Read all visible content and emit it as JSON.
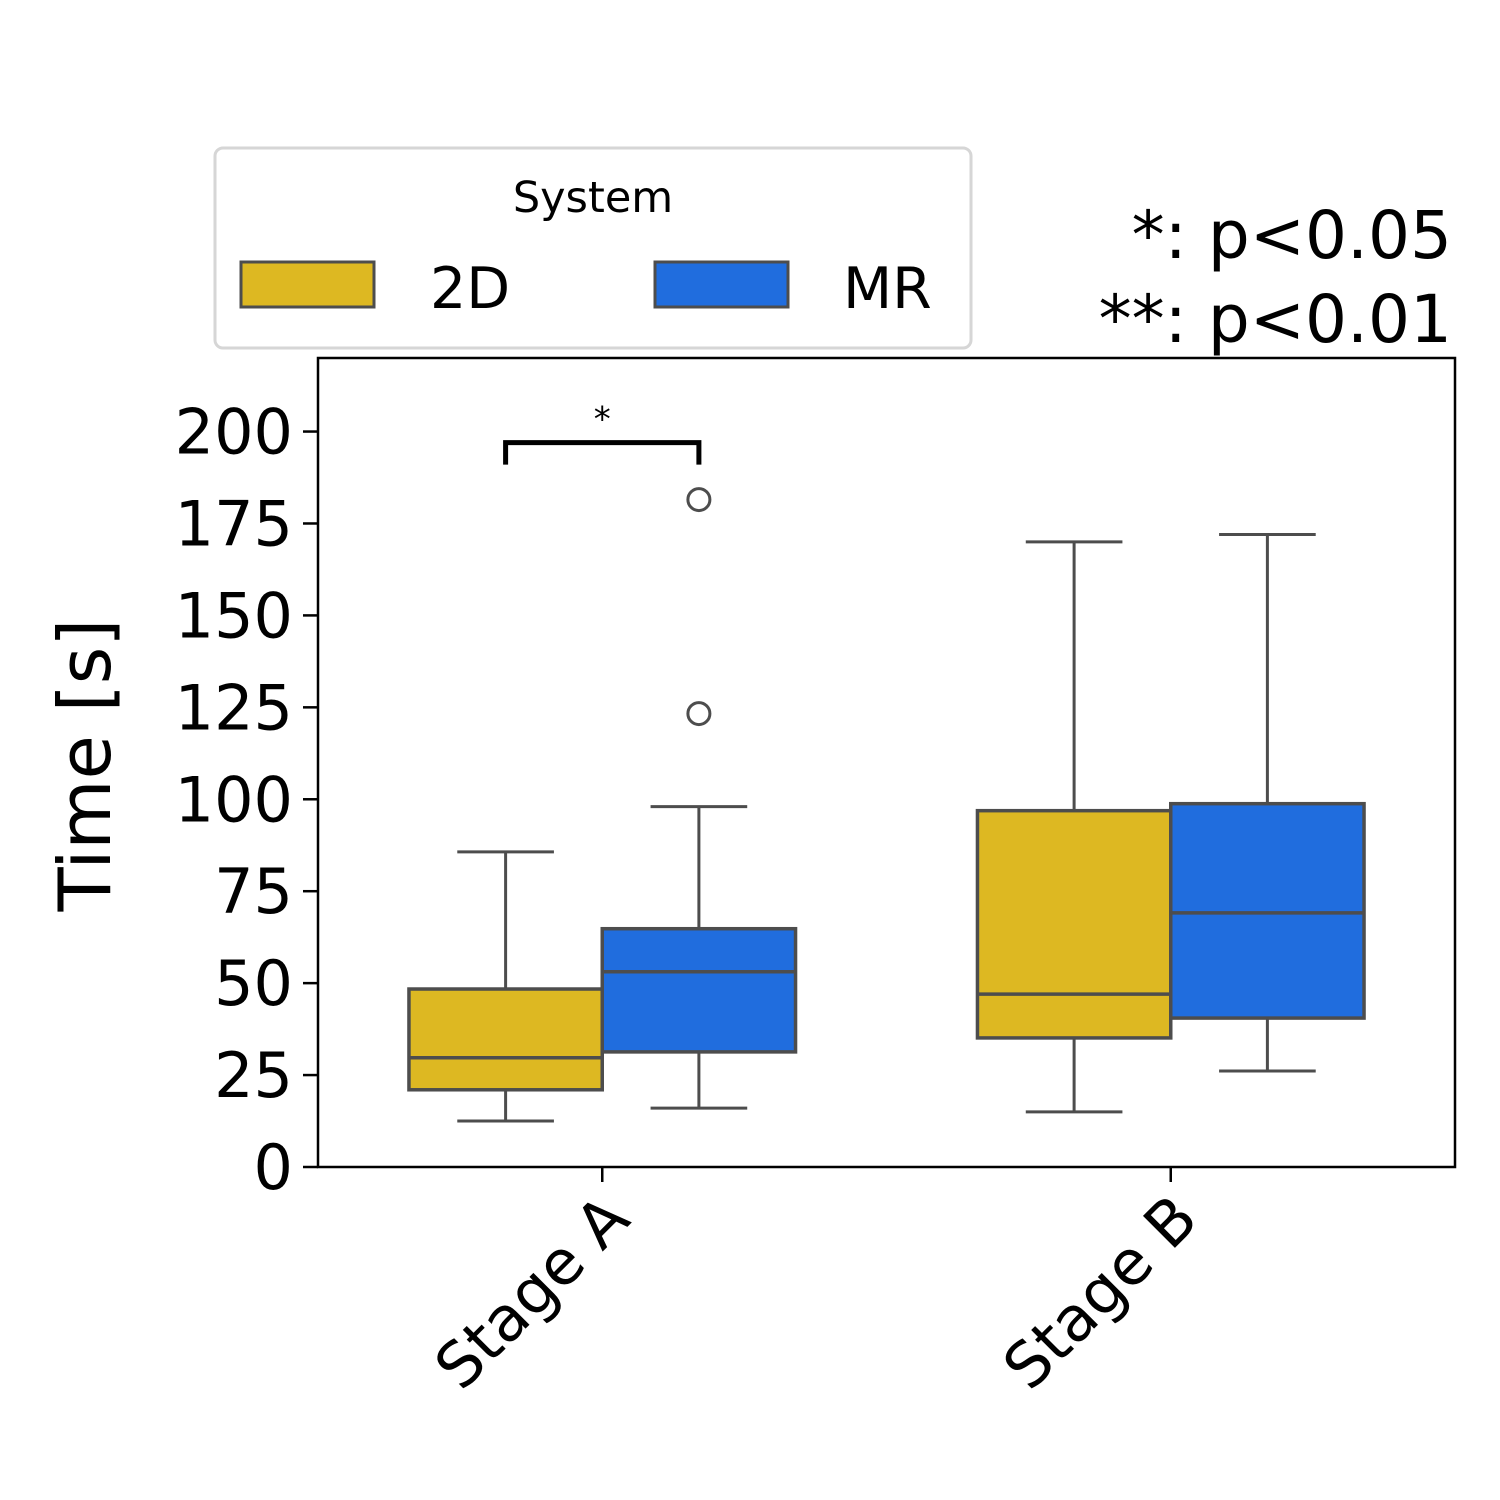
{
  "chart_data": {
    "type": "box",
    "title": "",
    "xlabel": "",
    "ylabel": "Time [s]",
    "ylim": [
      0,
      220
    ],
    "yticks": [
      0,
      25,
      50,
      75,
      100,
      125,
      150,
      175,
      200
    ],
    "yticklabels": [
      "0",
      "25",
      "50",
      "75",
      "100",
      "125",
      "150",
      "175",
      "200"
    ],
    "categories": [
      "Stage A",
      "Stage B"
    ],
    "legend": {
      "title": "System",
      "placement": "top-left, above axes",
      "entries": [
        "2D",
        "MR"
      ]
    },
    "series": [
      {
        "name": "2D",
        "color": "#DDB822",
        "boxes": [
          {
            "category": "Stage A",
            "whisker_low": 12.5,
            "q1": 21.0,
            "median": 29.7,
            "q3": 48.4,
            "whisker_high": 85.7,
            "outliers": []
          },
          {
            "category": "Stage B",
            "whisker_low": 15.0,
            "q1": 35.1,
            "median": 47.0,
            "q3": 96.9,
            "whisker_high": 170.0,
            "outliers": []
          }
        ]
      },
      {
        "name": "MR",
        "color": "#206DDE",
        "boxes": [
          {
            "category": "Stage A",
            "whisker_low": 16.0,
            "q1": 31.3,
            "median": 53.1,
            "q3": 64.8,
            "whisker_high": 98.0,
            "outliers": [
              123.3,
              181.5
            ]
          },
          {
            "category": "Stage B",
            "whisker_low": 26.1,
            "q1": 40.5,
            "median": 69.1,
            "q3": 98.8,
            "whisker_high": 172.0,
            "outliers": []
          }
        ]
      }
    ],
    "annotations": [
      {
        "type": "significance-bracket",
        "category": "Stage A",
        "between": [
          "2D",
          "MR"
        ],
        "label": "*",
        "y": 197
      }
    ],
    "significance_key": [
      "*: p<0.05",
      "**: p<0.01"
    ],
    "edge_color": "#4D4D4D"
  }
}
